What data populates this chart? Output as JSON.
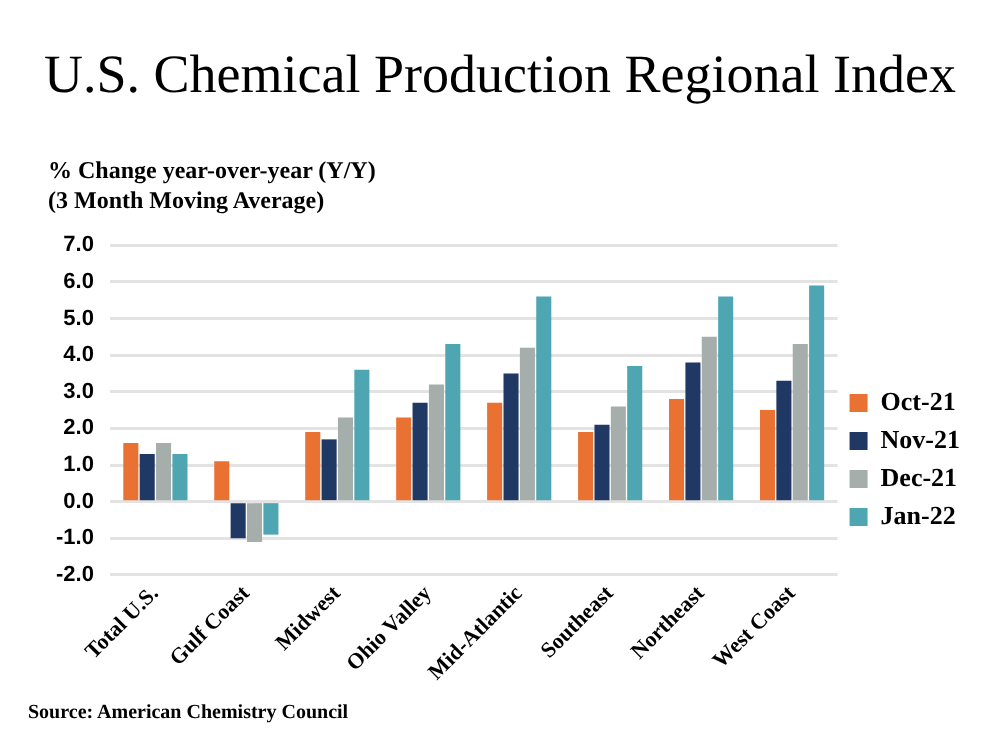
{
  "chart_data": {
    "type": "bar",
    "title": "U.S. Chemical Production Regional Index",
    "ylabel": "% Change year-over-year (Y/Y)\n(3 Month Moving Average)",
    "categories": [
      "Total U.S.",
      "Gulf Coast",
      "Midwest",
      "Ohio Valley",
      "Mid-Atlantic",
      "Southeast",
      "Northeast",
      "West Coast"
    ],
    "series": [
      {
        "name": "Oct-21",
        "color": "#e97132",
        "values": [
          1.6,
          1.1,
          1.9,
          2.3,
          2.7,
          1.9,
          2.8,
          2.5
        ]
      },
      {
        "name": "Nov-21",
        "color": "#203864",
        "values": [
          1.3,
          -1.0,
          1.7,
          2.7,
          3.5,
          2.1,
          3.8,
          3.3
        ]
      },
      {
        "name": "Dec-21",
        "color": "#a5aeaa",
        "values": [
          1.6,
          -1.1,
          2.3,
          3.2,
          4.2,
          2.6,
          4.5,
          4.3
        ]
      },
      {
        "name": "Jan-22",
        "color": "#4ea6b3",
        "values": [
          1.3,
          -0.9,
          3.6,
          4.3,
          5.6,
          3.7,
          5.6,
          5.9
        ]
      }
    ],
    "ylim": [
      -2,
      7
    ],
    "yticks": [
      {
        "value": -2,
        "label": "-2.0"
      },
      {
        "value": -1,
        "label": "-1.0"
      },
      {
        "value": 0,
        "label": "0.0"
      },
      {
        "value": 1,
        "label": "1.0"
      },
      {
        "value": 2,
        "label": "2.0"
      },
      {
        "value": 3,
        "label": "3.0"
      },
      {
        "value": 4,
        "label": "4.0"
      },
      {
        "value": 5,
        "label": "5.0"
      },
      {
        "value": 6,
        "label": "6.0"
      },
      {
        "value": 7,
        "label": "7.0"
      }
    ],
    "grid": "y",
    "legend": "right",
    "annotations": [
      "Source: American Chemistry Council"
    ]
  }
}
